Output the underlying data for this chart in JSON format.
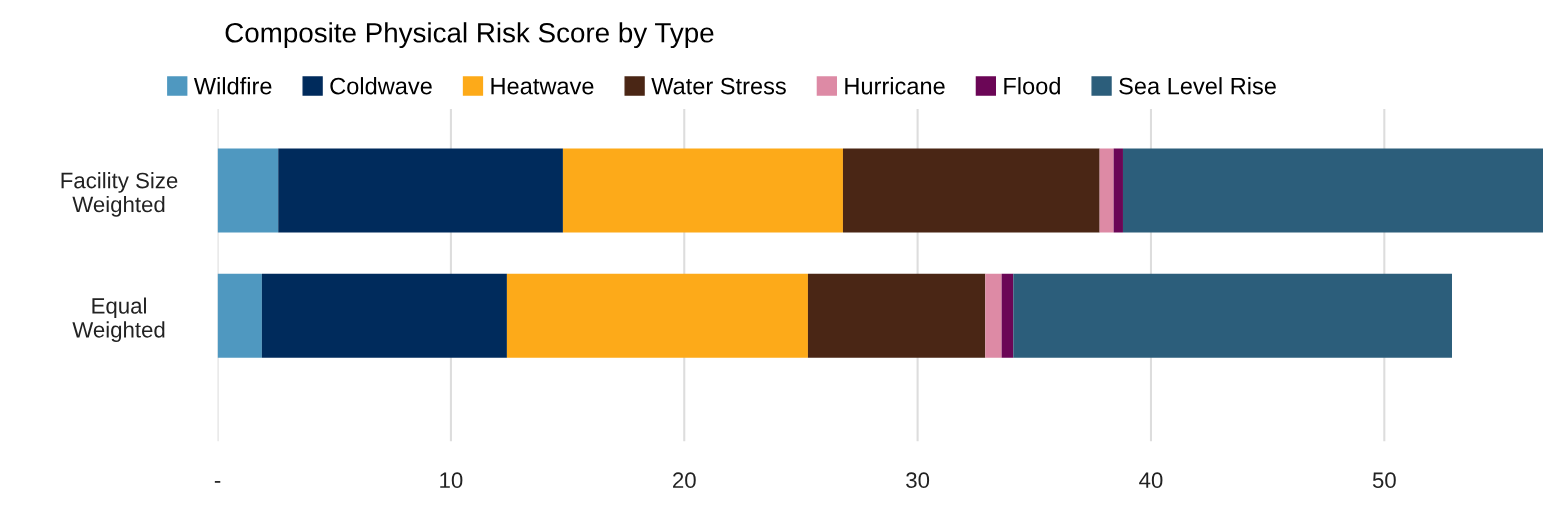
{
  "chart_data": {
    "type": "bar",
    "orientation": "horizontal",
    "stacked": true,
    "title": "Composite Physical Risk Score by Type",
    "categories": [
      "Facility Size\nWeighted",
      "Equal\nWeighted"
    ],
    "series": [
      {
        "name": "Wildfire",
        "color": "#4f98c0",
        "values": [
          2.6,
          1.9
        ]
      },
      {
        "name": "Coldwave",
        "color": "#002b5c",
        "values": [
          12.2,
          10.5
        ]
      },
      {
        "name": "Heatwave",
        "color": "#fdaa19",
        "values": [
          12.0,
          12.9
        ]
      },
      {
        "name": "Water Stress",
        "color": "#4a2615",
        "values": [
          11.0,
          7.6
        ]
      },
      {
        "name": "Hurricane",
        "color": "#dd8aa5",
        "values": [
          0.6,
          0.7
        ]
      },
      {
        "name": "Flood",
        "color": "#6b0656",
        "values": [
          0.4,
          0.5
        ]
      },
      {
        "name": "Sea Level Rise",
        "color": "#2c5e7b",
        "values": [
          18.0,
          18.8
        ]
      }
    ],
    "xlim": [
      0,
      56.8
    ],
    "xticks": [
      {
        "value": 0,
        "label": "-"
      },
      10,
      20,
      30,
      40,
      50
    ],
    "grid": "x",
    "legend": "top"
  }
}
